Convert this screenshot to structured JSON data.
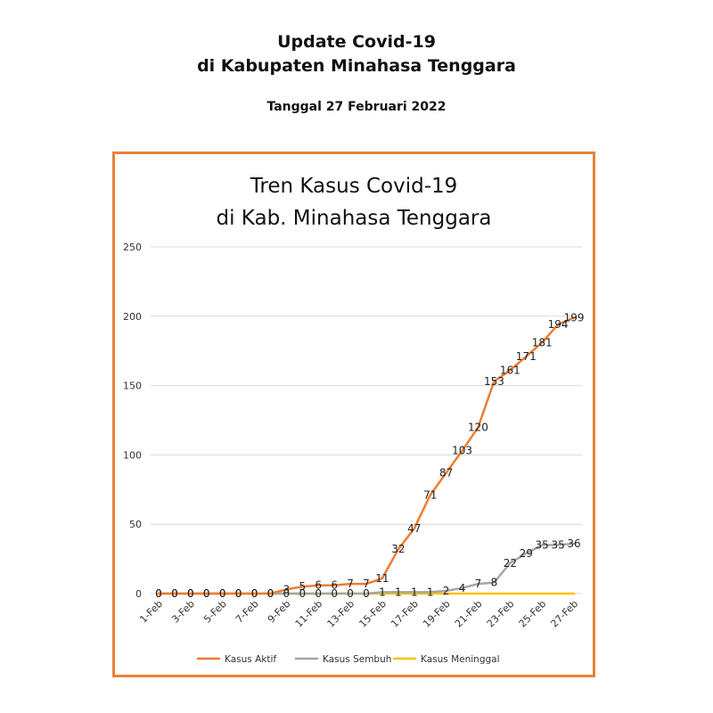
{
  "header": {
    "title_line1": "Update Covid-19",
    "title_line2": "di Kabupaten Minahasa Tenggara",
    "date": "Tanggal 27 Februari 2022"
  },
  "colors": {
    "frame": "#e8823a",
    "aktif": "#ed7d31",
    "sembuh": "#a5a5a5",
    "meninggal": "#ffc000",
    "grid": "#d9d9d9"
  },
  "chart_data": {
    "type": "line",
    "title_line1": "Tren Kasus Covid-19",
    "title_line2": "di Kab. Minahasa Tenggara",
    "x": [
      "1-Feb",
      "2-Feb",
      "3-Feb",
      "4-Feb",
      "5-Feb",
      "6-Feb",
      "7-Feb",
      "8-Feb",
      "9-Feb",
      "10-Feb",
      "11-Feb",
      "12-Feb",
      "13-Feb",
      "14-Feb",
      "15-Feb",
      "16-Feb",
      "17-Feb",
      "18-Feb",
      "19-Feb",
      "20-Feb",
      "21-Feb",
      "22-Feb",
      "23-Feb",
      "24-Feb",
      "25-Feb",
      "26-Feb",
      "27-Feb"
    ],
    "x_tick_labels": [
      "1-Feb",
      "3-Feb",
      "5-Feb",
      "7-Feb",
      "9-Feb",
      "11-Feb",
      "13-Feb",
      "15-Feb",
      "17-Feb",
      "19-Feb",
      "21-Feb",
      "23-Feb",
      "25-Feb",
      "27-Feb"
    ],
    "ylim": [
      0,
      250
    ],
    "yticks": [
      0,
      50,
      100,
      150,
      200,
      250
    ],
    "grid": true,
    "legend_position": "bottom",
    "series": [
      {
        "name": "Kasus Aktif",
        "color": "#ed7d31",
        "values": [
          0,
          0,
          0,
          0,
          0,
          0,
          0,
          0,
          3,
          5,
          6,
          6,
          7,
          7,
          11,
          32,
          47,
          71,
          87,
          103,
          120,
          153,
          161,
          171,
          181,
          194,
          199
        ],
        "labels_shown": true
      },
      {
        "name": "Kasus Sembuh",
        "color": "#a5a5a5",
        "values": [
          0,
          0,
          0,
          0,
          0,
          0,
          0,
          0,
          0,
          0,
          0,
          0,
          0,
          0,
          1,
          1,
          1,
          1,
          2,
          4,
          7,
          8,
          22,
          29,
          35,
          35,
          36
        ],
        "labels_shown": true
      },
      {
        "name": "Kasus Meninggal",
        "color": "#ffc000",
        "values": [
          0,
          0,
          0,
          0,
          0,
          0,
          0,
          0,
          0,
          0,
          0,
          0,
          0,
          0,
          0,
          0,
          0,
          0,
          0,
          0,
          0,
          0,
          0,
          0,
          0,
          0,
          0
        ],
        "labels_shown": false
      }
    ]
  }
}
